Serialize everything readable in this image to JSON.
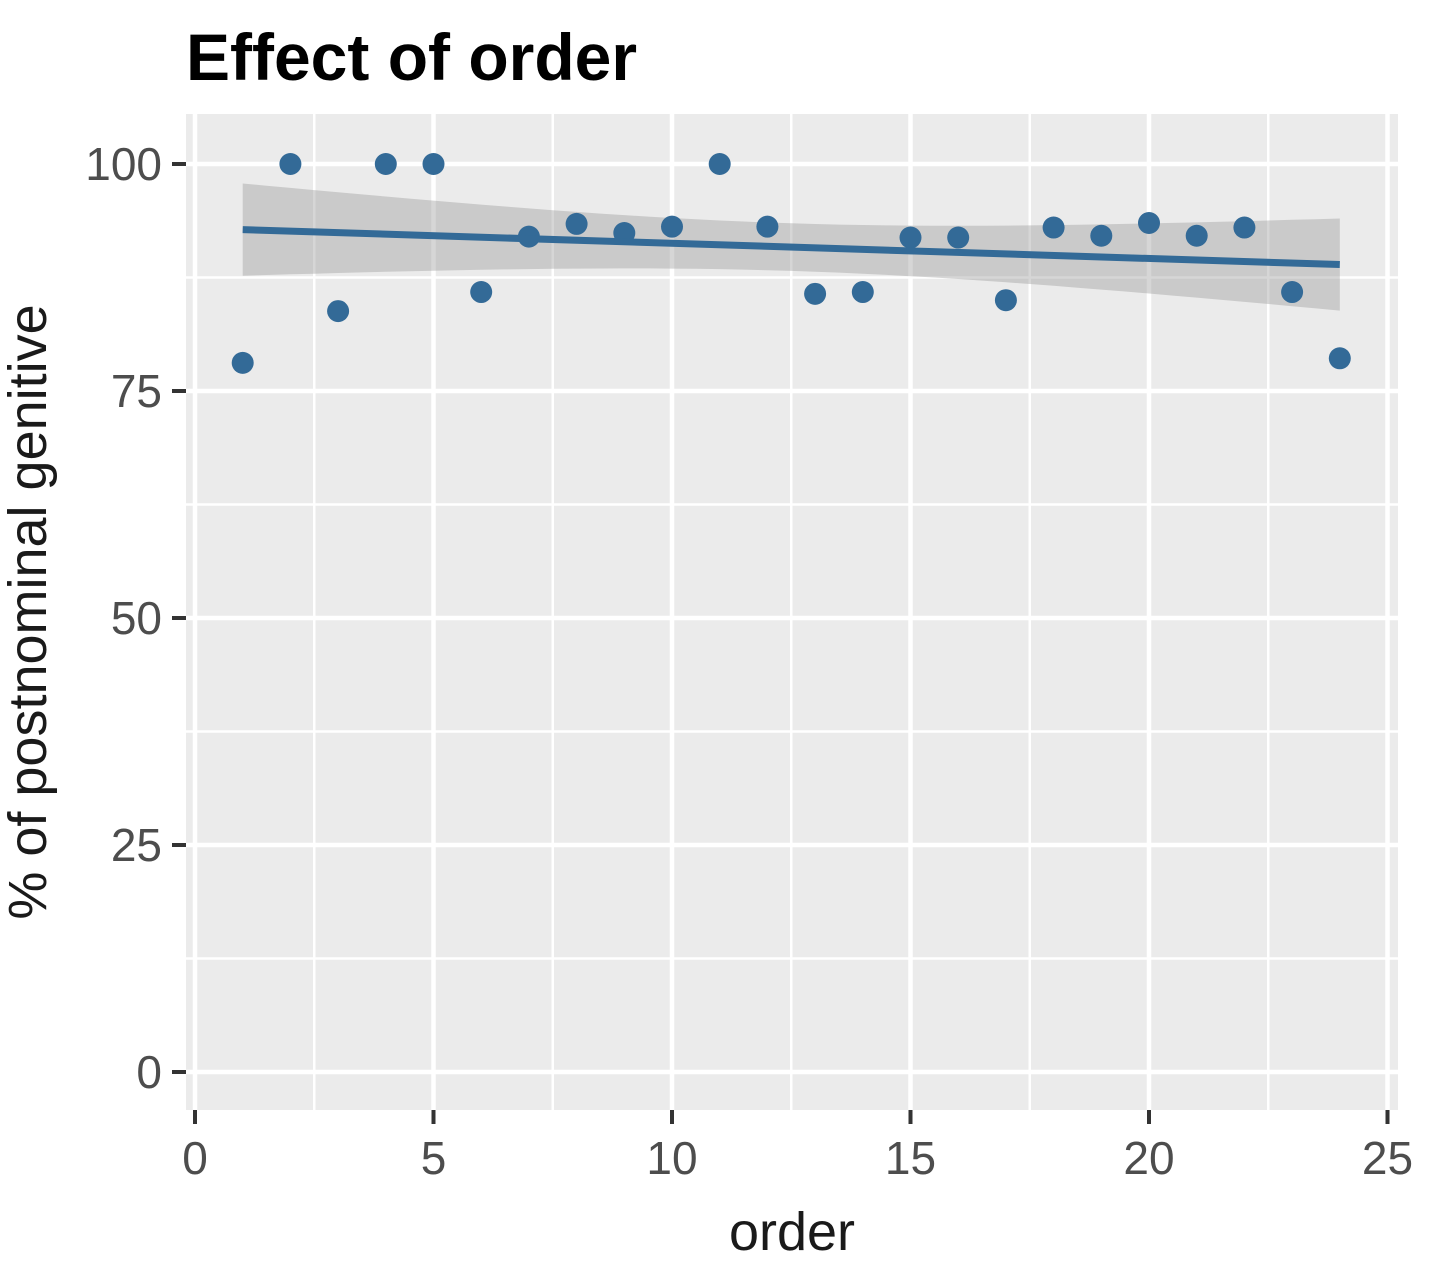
{
  "chart_data": {
    "type": "scatter",
    "title": "Effect of order",
    "xlabel": "order",
    "ylabel": "% of postnominal genitive",
    "x": [
      1,
      2,
      3,
      4,
      5,
      6,
      7,
      8,
      9,
      10,
      11,
      12,
      13,
      14,
      15,
      16,
      17,
      18,
      19,
      20,
      21,
      22,
      23,
      24
    ],
    "y": [
      78.1,
      100,
      83.8,
      100,
      100,
      85.9,
      92.0,
      93.4,
      92.4,
      93.1,
      100,
      93.1,
      85.7,
      85.9,
      91.9,
      91.9,
      85.0,
      93.0,
      92.1,
      93.5,
      92.1,
      93.0,
      85.9,
      78.6
    ],
    "x_ticks": [
      0,
      5,
      10,
      15,
      20,
      25
    ],
    "y_ticks": [
      0,
      25,
      50,
      75,
      100
    ],
    "xlim": [
      0,
      25
    ],
    "ylim": [
      0,
      100
    ],
    "grid": "major-and-minor",
    "legend": "none",
    "smooth": {
      "method": "lm",
      "ci_level": 0.95,
      "show_band": true,
      "line_x_start": 1,
      "line_x_end": 24
    },
    "colors": {
      "point": "#336A97",
      "trend_line": "#336A97",
      "band": "#999999",
      "band_opacity": 0.4,
      "panel_background": "#EBEBEB",
      "gridline": "#FFFFFF",
      "tick_mark": "#333333",
      "tick_text": "#4D4D4D",
      "axis_title_text": "#1A1A1A",
      "title_text": "#000000",
      "page_background": "#FFFFFF"
    }
  }
}
